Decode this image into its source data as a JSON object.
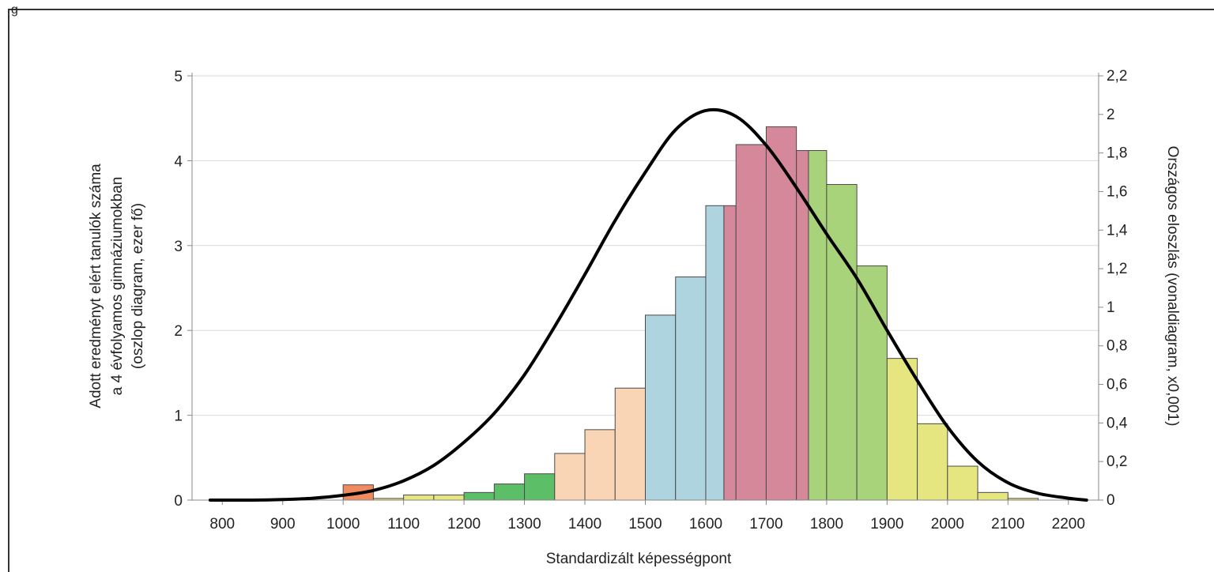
{
  "corner_label": "g",
  "chart_data": {
    "type": "bar",
    "xlabel": "Standardizált képességpont",
    "ylabel_lines": [
      "Adott eredményt elért tanulók száma",
      "a 4 évfolyamos gimnáziumokban",
      "(oszlop diagram, ezer fő)"
    ],
    "y2label": "Országos eloszlás (vonaldiagram, x0,001)",
    "xlim": [
      750,
      2250
    ],
    "ylim": [
      0,
      5
    ],
    "y2lim": [
      0,
      2.2
    ],
    "x_ticks": [
      800,
      900,
      1000,
      1100,
      1200,
      1300,
      1400,
      1500,
      1600,
      1700,
      1800,
      1900,
      2000,
      2100,
      2200
    ],
    "y_ticks": [
      0,
      1,
      2,
      3,
      4,
      5
    ],
    "y2_ticks": [
      "0",
      "0,2",
      "0,4",
      "0,6",
      "0,8",
      "1",
      "1,2",
      "1,4",
      "1,6",
      "1,8",
      "2",
      "2,2"
    ],
    "grid": true,
    "colors": {
      "orange": "#f08a60",
      "yellow": "#e6e680",
      "green": "#5cbf68",
      "peach": "#f9d5b6",
      "blue": "#aed4e0",
      "rose": "#d4889a",
      "lightgreen": "#a8d37a",
      "curve": "#000000"
    },
    "bars": [
      {
        "from": 1000,
        "to": 1050,
        "value": 0.18,
        "color": "orange"
      },
      {
        "from": 1050,
        "to": 1100,
        "value": 0.02,
        "color": "yellow"
      },
      {
        "from": 1100,
        "to": 1150,
        "value": 0.06,
        "color": "yellow"
      },
      {
        "from": 1150,
        "to": 1200,
        "value": 0.06,
        "color": "yellow"
      },
      {
        "from": 1200,
        "to": 1250,
        "value": 0.09,
        "color": "green"
      },
      {
        "from": 1250,
        "to": 1300,
        "value": 0.19,
        "color": "green"
      },
      {
        "from": 1300,
        "to": 1350,
        "value": 0.31,
        "color": "green"
      },
      {
        "from": 1350,
        "to": 1400,
        "value": 0.55,
        "color": "peach"
      },
      {
        "from": 1400,
        "to": 1450,
        "value": 0.83,
        "color": "peach"
      },
      {
        "from": 1450,
        "to": 1500,
        "value": 1.32,
        "color": "peach"
      },
      {
        "from": 1500,
        "to": 1550,
        "value": 2.18,
        "color": "blue"
      },
      {
        "from": 1550,
        "to": 1600,
        "value": 2.63,
        "color": "blue"
      },
      {
        "from": 1600,
        "to": 1630,
        "value": 3.47,
        "color": "blue"
      },
      {
        "from": 1630,
        "to": 1650,
        "value": 3.47,
        "color": "rose"
      },
      {
        "from": 1650,
        "to": 1700,
        "value": 4.19,
        "color": "rose"
      },
      {
        "from": 1700,
        "to": 1750,
        "value": 4.4,
        "color": "rose"
      },
      {
        "from": 1750,
        "to": 1770,
        "value": 4.12,
        "color": "rose"
      },
      {
        "from": 1770,
        "to": 1800,
        "value": 4.12,
        "color": "lightgreen"
      },
      {
        "from": 1800,
        "to": 1850,
        "value": 3.72,
        "color": "lightgreen"
      },
      {
        "from": 1850,
        "to": 1900,
        "value": 2.76,
        "color": "lightgreen"
      },
      {
        "from": 1900,
        "to": 1950,
        "value": 1.67,
        "color": "yellow"
      },
      {
        "from": 1950,
        "to": 2000,
        "value": 0.9,
        "color": "yellow"
      },
      {
        "from": 2000,
        "to": 2050,
        "value": 0.4,
        "color": "yellow"
      },
      {
        "from": 2050,
        "to": 2100,
        "value": 0.09,
        "color": "yellow"
      },
      {
        "from": 2100,
        "to": 2150,
        "value": 0.02,
        "color": "yellow"
      }
    ],
    "line": {
      "name": "Országos eloszlás",
      "x": [
        780,
        850,
        900,
        950,
        1000,
        1050,
        1100,
        1150,
        1200,
        1250,
        1300,
        1350,
        1400,
        1450,
        1500,
        1550,
        1600,
        1650,
        1700,
        1750,
        1800,
        1850,
        1900,
        1950,
        2000,
        2050,
        2100,
        2150,
        2200,
        2230
      ],
      "y": [
        0.0,
        0.0,
        0.003,
        0.01,
        0.025,
        0.05,
        0.1,
        0.18,
        0.3,
        0.45,
        0.65,
        0.9,
        1.17,
        1.45,
        1.7,
        1.92,
        2.02,
        1.99,
        1.84,
        1.62,
        1.38,
        1.15,
        0.88,
        0.62,
        0.38,
        0.2,
        0.09,
        0.035,
        0.01,
        0.0
      ]
    }
  }
}
